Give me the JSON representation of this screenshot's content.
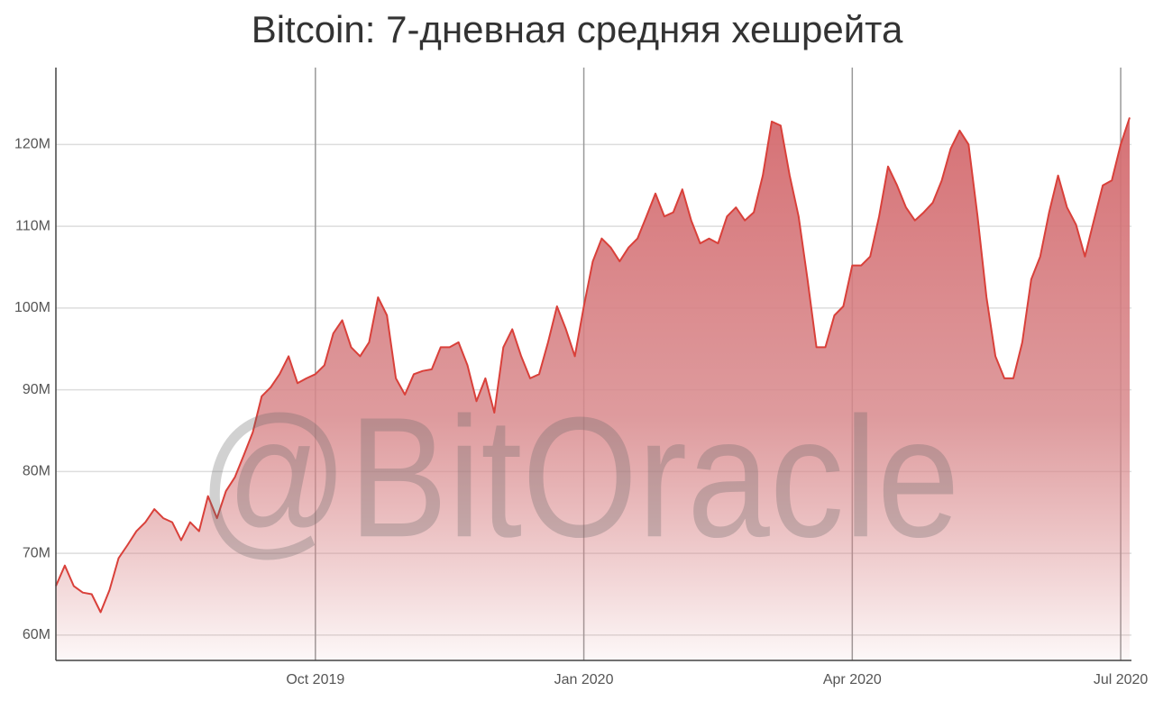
{
  "chart_data": {
    "type": "area",
    "title": "Bitcoin: 7-дневная средняя хешрейта",
    "watermark": "@BitOracle",
    "color": "#d9403a",
    "categories": [
      null,
      null,
      null,
      null,
      null,
      null,
      null,
      null,
      null,
      null,
      null,
      null,
      null,
      null,
      null,
      null,
      null,
      null,
      null,
      null,
      null,
      null,
      null,
      null,
      null,
      null,
      null,
      null,
      null,
      "Oct 2019",
      null,
      null,
      null,
      null,
      null,
      null,
      null,
      null,
      null,
      null,
      null,
      null,
      null,
      null,
      null,
      null,
      null,
      null,
      null,
      null,
      null,
      null,
      null,
      null,
      null,
      null,
      null,
      null,
      null,
      "Jan 2020",
      null,
      null,
      null,
      null,
      null,
      null,
      null,
      null,
      null,
      null,
      null,
      null,
      null,
      null,
      null,
      null,
      null,
      null,
      null,
      null,
      null,
      null,
      null,
      null,
      null,
      null,
      null,
      null,
      null,
      "Apr 2020",
      null,
      null,
      null,
      null,
      null,
      null,
      null,
      null,
      null,
      null,
      null,
      null,
      null,
      null,
      null,
      null,
      null,
      null,
      null,
      null,
      null,
      null,
      null,
      null,
      null,
      null,
      null,
      null,
      null,
      "Jul 2020",
      null
    ],
    "values": [
      66,
      68.5,
      66,
      65.2,
      65,
      62.8,
      65.5,
      69.4,
      71,
      72.7,
      73.8,
      75.4,
      74.3,
      73.8,
      71.6,
      73.8,
      72.7,
      77,
      74.3,
      77.6,
      79.3,
      82,
      84.8,
      89.2,
      90.3,
      91.9,
      94.1,
      90.8,
      91.4,
      91.9,
      93,
      96.9,
      98.5,
      95.2,
      94.1,
      95.8,
      101.3,
      99.1,
      91.4,
      89.4,
      91.9,
      92.3,
      92.5,
      95.2,
      95.2,
      95.8,
      93,
      88.6,
      91.4,
      87.2,
      95.2,
      97.4,
      94.1,
      91.4,
      91.9,
      95.8,
      100.2,
      97.4,
      94.1,
      100.2,
      105.7,
      108.5,
      107.4,
      105.7,
      107.4,
      108.5,
      111.2,
      114,
      111.2,
      111.7,
      114.5,
      110.7,
      107.9,
      108.5,
      107.9,
      111.2,
      112.3,
      110.7,
      111.7,
      116.2,
      122.8,
      122.3,
      116.2,
      111.2,
      103.5,
      95.2,
      95.2,
      99.1,
      100.2,
      105.2,
      105.2,
      106.3,
      111.2,
      117.3,
      115,
      112.3,
      110.7,
      111.7,
      112.9,
      115.6,
      119.5,
      121.7,
      120,
      111.2,
      101.3,
      94.1,
      91.4,
      91.4,
      95.8,
      103.5,
      106.3,
      111.7,
      116.2,
      112.3,
      110.2,
      106.3,
      110.7,
      115,
      115.6,
      120,
      123.3
    ],
    "ylim": [
      56.9,
      129.4
    ],
    "yticks": [
      {
        "value": 60,
        "label": "60M"
      },
      {
        "value": 70,
        "label": "70M"
      },
      {
        "value": 80,
        "label": "80M"
      },
      {
        "value": 90,
        "label": "90M"
      },
      {
        "value": 100,
        "label": "100M"
      },
      {
        "value": 110,
        "label": "110M"
      },
      {
        "value": 120,
        "label": "120M"
      }
    ],
    "grid": true
  }
}
